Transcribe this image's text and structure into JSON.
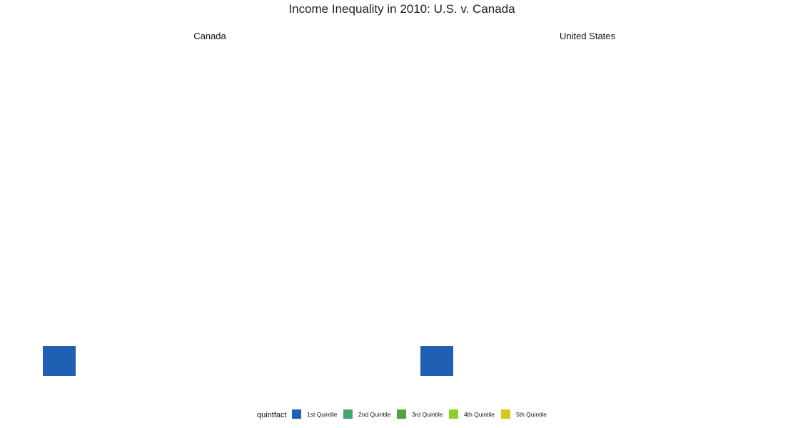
{
  "chart_data": {
    "type": "bar",
    "title": "Income Inequality in 2010: U.S. v. Canada",
    "facets": [
      "Canada",
      "United States"
    ],
    "categories": [
      "1st Quintile",
      "2nd Quintile",
      "3rd Quintile",
      "4th Quintile",
      "5th Quintile"
    ],
    "series": [
      {
        "facet": "Canada",
        "values": [
          1,
          null,
          null,
          null,
          null
        ]
      },
      {
        "facet": "United States",
        "values": [
          1,
          null,
          null,
          null,
          null
        ]
      }
    ],
    "legend": {
      "title": "quintfact",
      "placement": "bottom",
      "labels": [
        "1st Quintile",
        "2nd Quintile",
        "3rd Quintile",
        "4th Quintile",
        "5th Quintile"
      ],
      "colors": [
        "#1f5fb4",
        "#3ea86e",
        "#4ea53a",
        "#8fcf27",
        "#d4c91a"
      ]
    },
    "grid": false,
    "axes_visible": false
  }
}
